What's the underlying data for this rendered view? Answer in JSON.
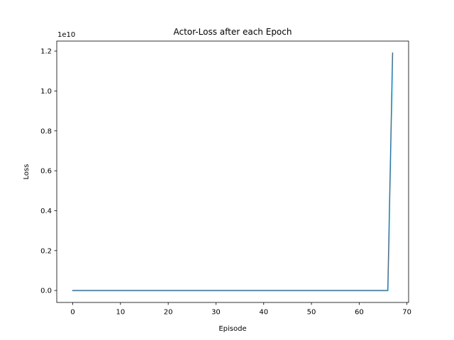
{
  "chart_data": {
    "type": "line",
    "title": "Actor-Loss after each Epoch",
    "xlabel": "Episode",
    "ylabel": "Loss",
    "y_offset_label": "1e10",
    "xlim": [
      -3.35,
      70.35
    ],
    "ylim": [
      -0.06,
      1.25
    ],
    "x_ticks": [
      0,
      10,
      20,
      30,
      40,
      50,
      60,
      70
    ],
    "x_tick_labels": [
      "0",
      "10",
      "20",
      "30",
      "40",
      "50",
      "60",
      "70"
    ],
    "y_ticks": [
      0.0,
      0.2,
      0.4,
      0.6,
      0.8,
      1.0,
      1.2
    ],
    "y_tick_labels": [
      "0.0",
      "0.2",
      "0.4",
      "0.6",
      "0.8",
      "1.0",
      "1.2"
    ],
    "grid": false,
    "series": [
      {
        "color": "#1f77b4",
        "x": [
          0,
          10,
          20,
          30,
          40,
          50,
          60,
          66,
          67
        ],
        "y": [
          0,
          0,
          0,
          0,
          0,
          0,
          0,
          0,
          1.19
        ]
      }
    ]
  }
}
